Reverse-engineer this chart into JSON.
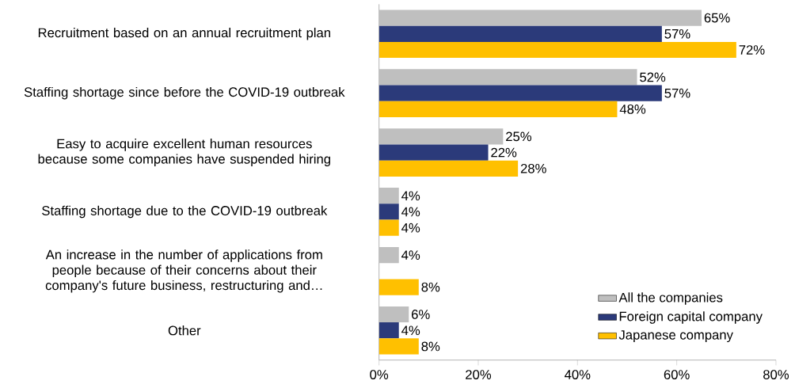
{
  "chart_data": {
    "type": "bar",
    "orientation": "horizontal",
    "legend": "bottom right",
    "categories": [
      "Recruitment based on an annual recruitment plan",
      "Staffing shortage since before the COVID-19 outbreak",
      "Easy to acquire excellent human resources because some companies have suspended hiring",
      "Staffing shortage due to the COVID-19 outbreak",
      "An increase in the number of applications from people because of their concerns about their company's future business, restructuring and…",
      "Other"
    ],
    "series": [
      {
        "name": "All the companies",
        "color": "#bfbfbf",
        "values": [
          65,
          52,
          25,
          4,
          4,
          6
        ],
        "value_labels": [
          "65%",
          "52%",
          "25%",
          "4%",
          "4%",
          "6%"
        ]
      },
      {
        "name": "Foreign capital company",
        "color": "#2b3a7a",
        "values": [
          57,
          57,
          22,
          4,
          null,
          4
        ],
        "value_labels": [
          "57%",
          "57%",
          "22%",
          "4%",
          null,
          "4%"
        ]
      },
      {
        "name": "Japanese company",
        "color": "#ffc000",
        "values": [
          72,
          48,
          28,
          4,
          8,
          8
        ],
        "value_labels": [
          "72%",
          "48%",
          "28%",
          "4%",
          "8%",
          "8%"
        ]
      }
    ],
    "xlim": [
      0,
      80
    ],
    "xticks": [
      {
        "value": 0,
        "label": "0%"
      },
      {
        "value": 20,
        "label": "20%"
      },
      {
        "value": 40,
        "label": "40%"
      },
      {
        "value": 60,
        "label": "60%"
      },
      {
        "value": 80,
        "label": "80%"
      }
    ]
  }
}
